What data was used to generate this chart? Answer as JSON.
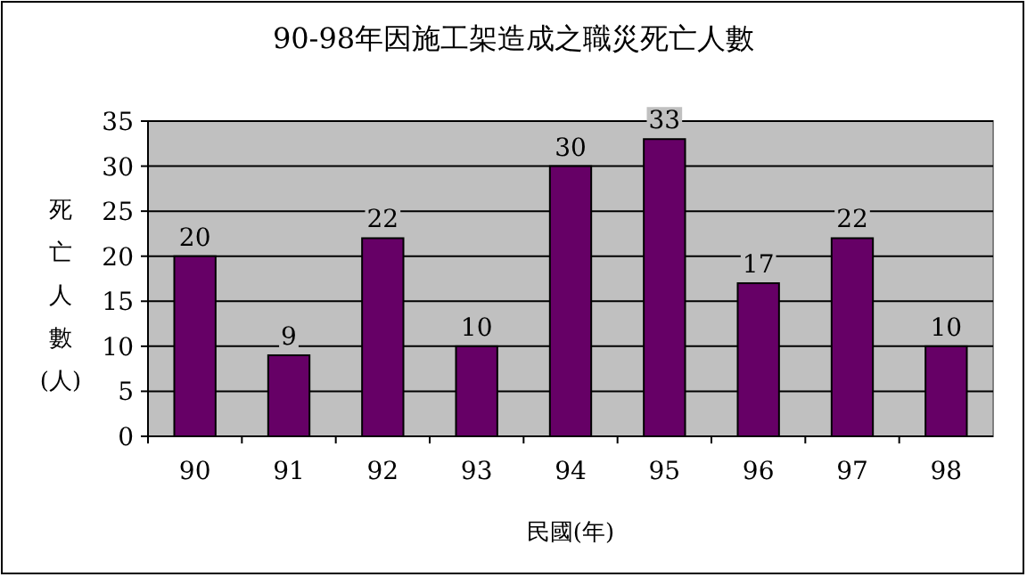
{
  "chart_data": {
    "type": "bar",
    "title": "90-98年因施工架造成之職災死亡人數",
    "xlabel": "民國(年)",
    "ylabel": "死亡人數(人)",
    "categories": [
      "90",
      "91",
      "92",
      "93",
      "94",
      "95",
      "96",
      "97",
      "98"
    ],
    "values": [
      20,
      9,
      22,
      10,
      30,
      33,
      17,
      22,
      10
    ],
    "color": "#660066",
    "ylim": [
      0,
      35
    ],
    "yticks": [
      0,
      5,
      10,
      15,
      20,
      25,
      30,
      35
    ],
    "grid": "y",
    "data_labels": true
  }
}
